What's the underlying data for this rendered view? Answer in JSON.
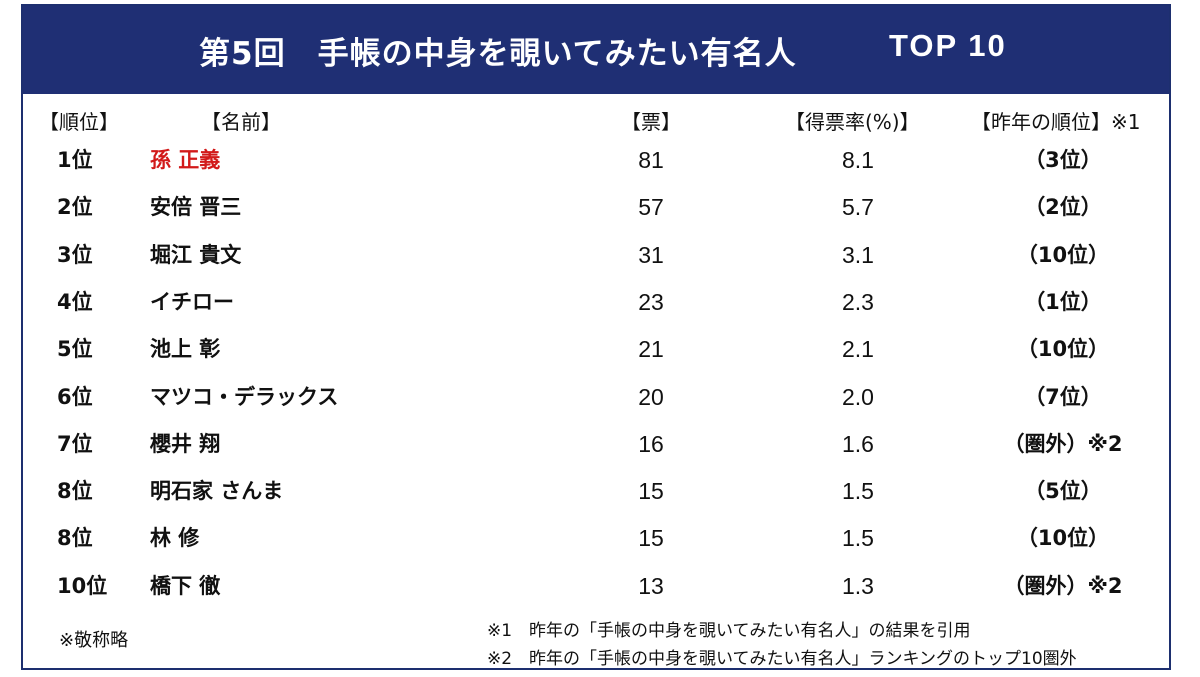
{
  "title": {
    "main": "第5回　手帳の中身を覗いてみたい有名人",
    "top": "TOP 10"
  },
  "headers": {
    "rank": "【順位】",
    "name": "【名前】",
    "votes": "【票】",
    "rate": "【得票率(%)】",
    "prev": "【昨年の順位】※1"
  },
  "rows": [
    {
      "rank": "1位",
      "name": "孫 正義",
      "votes": "81",
      "rate": "8.1",
      "prev": "（3位）",
      "highlight": "#d21a1a"
    },
    {
      "rank": "2位",
      "name": "安倍 晋三",
      "votes": "57",
      "rate": "5.7",
      "prev": "（2位）"
    },
    {
      "rank": "3位",
      "name": "堀江 貴文",
      "votes": "31",
      "rate": "3.1",
      "prev": "（10位）"
    },
    {
      "rank": "4位",
      "name": "イチロー",
      "votes": "23",
      "rate": "2.3",
      "prev": "（1位）"
    },
    {
      "rank": "5位",
      "name": "池上 彰",
      "votes": "21",
      "rate": "2.1",
      "prev": "（10位）"
    },
    {
      "rank": "6位",
      "name": "マツコ・デラックス",
      "votes": "20",
      "rate": "2.0",
      "prev": "（7位）"
    },
    {
      "rank": "7位",
      "name": "櫻井 翔",
      "votes": "16",
      "rate": "1.6",
      "prev": "（圏外）※2"
    },
    {
      "rank": "8位",
      "name": "明石家 さんま",
      "votes": "15",
      "rate": "1.5",
      "prev": "（5位）"
    },
    {
      "rank": "8位",
      "name": "林 修",
      "votes": "15",
      "rate": "1.5",
      "prev": "（10位）"
    },
    {
      "rank": "10位",
      "name": "橋下 徹",
      "votes": "13",
      "rate": "1.3",
      "prev": "（圏外）※2"
    }
  ],
  "notes": {
    "honorific": "※敬称略",
    "note1": "※1　昨年の「手帳の中身を覗いてみたい有名人」の結果を引用",
    "note2": "※2　昨年の「手帳の中身を覗いてみたい有名人」ランキングのトップ10圏外"
  },
  "colors": {
    "title_bg": "#1f2f74",
    "highlight": "#d21a1a"
  }
}
